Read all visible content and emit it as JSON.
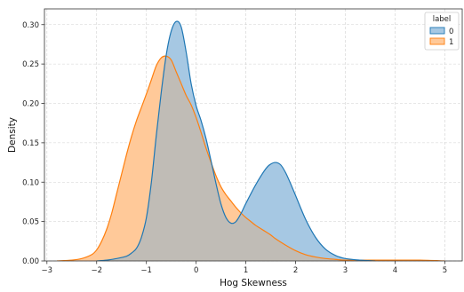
{
  "chart_data": {
    "type": "area",
    "xlabel": "Hog Skewness",
    "ylabel": "Density",
    "xlim": [
      -3.05,
      5.35
    ],
    "ylim": [
      0,
      0.32
    ],
    "x_ticks": [
      -3,
      -2,
      -1,
      0,
      1,
      2,
      3,
      4,
      5
    ],
    "y_ticks": [
      0.0,
      0.05,
      0.1,
      0.15,
      0.2,
      0.25,
      0.3
    ],
    "y_tick_labels": [
      "0.00",
      "0.05",
      "0.10",
      "0.15",
      "0.20",
      "0.25",
      "0.30"
    ],
    "x_tick_labels": [
      "−3",
      "−2",
      "−1",
      "0",
      "1",
      "2",
      "3",
      "4",
      "5"
    ],
    "grid": true,
    "legend": {
      "title": "label",
      "placement": "top-right"
    },
    "series": [
      {
        "name": "0",
        "color": "#1f77b4",
        "fill": "#a6c8e3",
        "points": [
          [
            -2.0,
            0.0
          ],
          [
            -1.8,
            0.001
          ],
          [
            -1.6,
            0.003
          ],
          [
            -1.4,
            0.006
          ],
          [
            -1.3,
            0.01
          ],
          [
            -1.2,
            0.016
          ],
          [
            -1.1,
            0.03
          ],
          [
            -1.0,
            0.055
          ],
          [
            -0.9,
            0.1
          ],
          [
            -0.8,
            0.16
          ],
          [
            -0.7,
            0.215
          ],
          [
            -0.6,
            0.262
          ],
          [
            -0.5,
            0.292
          ],
          [
            -0.4,
            0.304
          ],
          [
            -0.3,
            0.297
          ],
          [
            -0.2,
            0.265
          ],
          [
            -0.1,
            0.225
          ],
          [
            0.0,
            0.197
          ],
          [
            0.1,
            0.178
          ],
          [
            0.2,
            0.155
          ],
          [
            0.3,
            0.127
          ],
          [
            0.4,
            0.098
          ],
          [
            0.5,
            0.072
          ],
          [
            0.6,
            0.055
          ],
          [
            0.7,
            0.048
          ],
          [
            0.8,
            0.05
          ],
          [
            0.9,
            0.06
          ],
          [
            1.0,
            0.073
          ],
          [
            1.2,
            0.097
          ],
          [
            1.4,
            0.117
          ],
          [
            1.5,
            0.123
          ],
          [
            1.6,
            0.125
          ],
          [
            1.7,
            0.122
          ],
          [
            1.8,
            0.112
          ],
          [
            1.9,
            0.098
          ],
          [
            2.0,
            0.083
          ],
          [
            2.2,
            0.053
          ],
          [
            2.4,
            0.03
          ],
          [
            2.6,
            0.015
          ],
          [
            2.8,
            0.007
          ],
          [
            3.0,
            0.003
          ],
          [
            3.3,
            0.001
          ],
          [
            3.6,
            0.0
          ]
        ]
      },
      {
        "name": "1",
        "color": "#ff7f0e",
        "fill": "#ffc999",
        "points": [
          [
            -2.8,
            0.0
          ],
          [
            -2.5,
            0.001
          ],
          [
            -2.3,
            0.003
          ],
          [
            -2.1,
            0.008
          ],
          [
            -2.0,
            0.014
          ],
          [
            -1.9,
            0.025
          ],
          [
            -1.8,
            0.04
          ],
          [
            -1.7,
            0.06
          ],
          [
            -1.6,
            0.085
          ],
          [
            -1.5,
            0.11
          ],
          [
            -1.4,
            0.135
          ],
          [
            -1.3,
            0.158
          ],
          [
            -1.2,
            0.178
          ],
          [
            -1.1,
            0.195
          ],
          [
            -1.0,
            0.212
          ],
          [
            -0.9,
            0.23
          ],
          [
            -0.8,
            0.248
          ],
          [
            -0.7,
            0.258
          ],
          [
            -0.6,
            0.26
          ],
          [
            -0.5,
            0.255
          ],
          [
            -0.4,
            0.24
          ],
          [
            -0.3,
            0.225
          ],
          [
            -0.2,
            0.21
          ],
          [
            -0.1,
            0.198
          ],
          [
            0.0,
            0.182
          ],
          [
            0.1,
            0.163
          ],
          [
            0.2,
            0.143
          ],
          [
            0.3,
            0.125
          ],
          [
            0.4,
            0.108
          ],
          [
            0.5,
            0.094
          ],
          [
            0.6,
            0.084
          ],
          [
            0.7,
            0.076
          ],
          [
            0.8,
            0.068
          ],
          [
            0.9,
            0.061
          ],
          [
            1.0,
            0.055
          ],
          [
            1.1,
            0.05
          ],
          [
            1.2,
            0.045
          ],
          [
            1.3,
            0.041
          ],
          [
            1.4,
            0.037
          ],
          [
            1.5,
            0.033
          ],
          [
            1.6,
            0.028
          ],
          [
            1.8,
            0.02
          ],
          [
            2.0,
            0.013
          ],
          [
            2.2,
            0.008
          ],
          [
            2.4,
            0.005
          ],
          [
            2.6,
            0.003
          ],
          [
            2.8,
            0.002
          ],
          [
            3.0,
            0.001
          ],
          [
            3.5,
            0.001
          ],
          [
            4.0,
            0.001
          ],
          [
            4.5,
            0.001
          ],
          [
            5.0,
            0.0
          ]
        ]
      }
    ],
    "overlap_fill": "#c0bcb6"
  }
}
